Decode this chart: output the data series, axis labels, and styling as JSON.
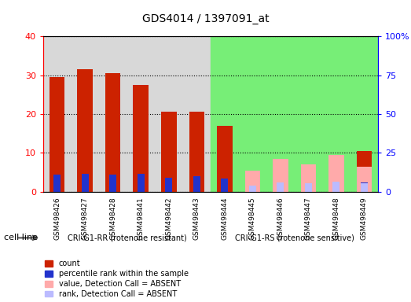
{
  "title": "GDS4014 / 1397091_at",
  "samples": [
    "GSM498426",
    "GSM498427",
    "GSM498428",
    "GSM498441",
    "GSM498442",
    "GSM498443",
    "GSM498444",
    "GSM498445",
    "GSM498446",
    "GSM498447",
    "GSM498448",
    "GSM498449"
  ],
  "group1_label": "CRI-G1-RR (rotenone resistant)",
  "group2_label": "CRI-G1-RS (rotenone sensitive)",
  "group1_count": 6,
  "group2_count": 6,
  "cell_line_label": "cell line",
  "count_values": [
    29.5,
    31.5,
    30.5,
    27.5,
    20.5,
    20.5,
    17.0,
    0,
    0,
    0,
    0,
    10.5
  ],
  "rank_values": [
    11.0,
    11.5,
    11.0,
    11.5,
    9.0,
    10.0,
    8.5,
    0,
    0,
    0,
    0,
    6.0
  ],
  "absent_value": [
    0,
    0,
    0,
    0,
    0,
    0,
    0,
    5.5,
    8.5,
    7.0,
    9.5,
    6.5
  ],
  "absent_rank": [
    0,
    0,
    0,
    0,
    0,
    0,
    0,
    4.0,
    6.0,
    5.5,
    6.5,
    5.5
  ],
  "ylim_left": [
    0,
    40
  ],
  "ylim_right": [
    0,
    100
  ],
  "yticks_left": [
    0,
    10,
    20,
    30,
    40
  ],
  "yticks_right": [
    0,
    25,
    50,
    75,
    100
  ],
  "ytick_labels_right": [
    "0",
    "25",
    "50",
    "75",
    "100%"
  ],
  "color_count": "#cc2200",
  "color_rank": "#2233cc",
  "color_absent_value": "#ffaaaa",
  "color_absent_rank": "#bbbbff",
  "color_group1_bg": "#d8d8d8",
  "color_group2_bg": "#77ee77",
  "bar_width": 0.55,
  "legend_items": [
    {
      "label": "count",
      "color": "#cc2200"
    },
    {
      "label": "percentile rank within the sample",
      "color": "#2233cc"
    },
    {
      "label": "value, Detection Call = ABSENT",
      "color": "#ffaaaa"
    },
    {
      "label": "rank, Detection Call = ABSENT",
      "color": "#bbbbff"
    }
  ]
}
